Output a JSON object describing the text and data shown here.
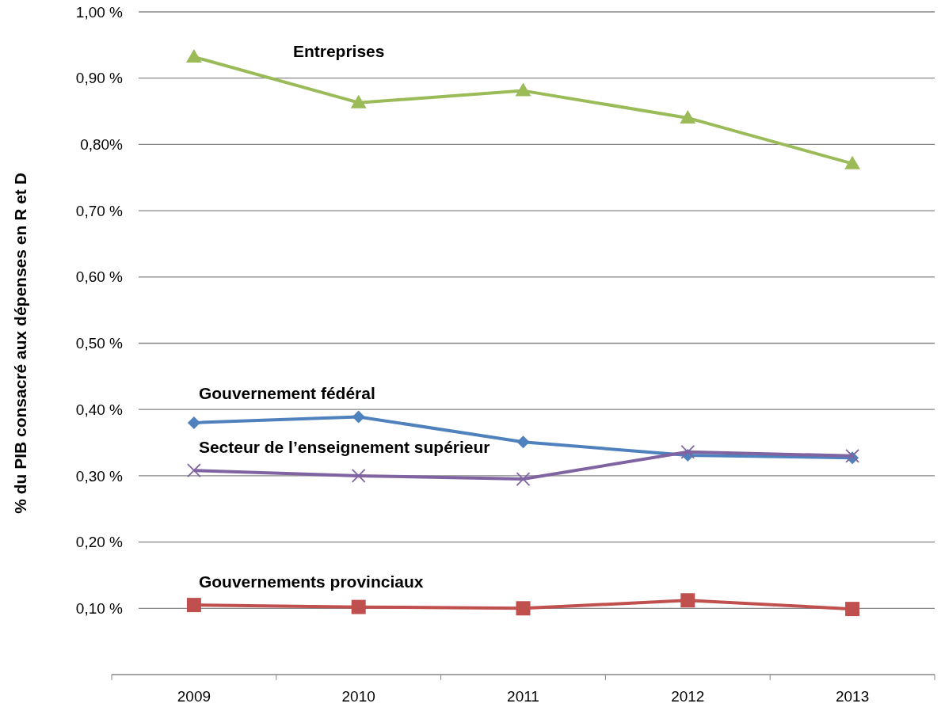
{
  "chart_data": {
    "type": "line",
    "ylabel": "% du PIB consacré aux dépenses en R et D",
    "categories": [
      "2009",
      "2010",
      "2011",
      "2012",
      "2013"
    ],
    "series": [
      {
        "name": "Entreprises",
        "color": "#9bbb59",
        "marker": "triangle",
        "values": [
          0.932,
          0.863,
          0.881,
          0.84,
          0.771
        ]
      },
      {
        "name": "Gouvernement fédéral",
        "color": "#4f81bd",
        "marker": "diamond",
        "values": [
          0.38,
          0.389,
          0.351,
          0.331,
          0.327
        ]
      },
      {
        "name": "Secteur de l’enseignement supérieur",
        "color": "#8064a2",
        "marker": "cross",
        "values": [
          0.308,
          0.3,
          0.295,
          0.336,
          0.33
        ]
      },
      {
        "name": "Gouvernements provinciaux",
        "color": "#c0504d",
        "marker": "square",
        "values": [
          0.105,
          0.102,
          0.1,
          0.112,
          0.099
        ]
      }
    ],
    "ylim": [
      0,
      1.0
    ],
    "yticks": [
      {
        "value": 0.1,
        "label": "0,10 %"
      },
      {
        "value": 0.2,
        "label": "0,20 %"
      },
      {
        "value": 0.3,
        "label": "0,30 %"
      },
      {
        "value": 0.4,
        "label": "0,40 %"
      },
      {
        "value": 0.5,
        "label": "0,50 %"
      },
      {
        "value": 0.6,
        "label": "0,60 %"
      },
      {
        "value": 0.7,
        "label": "0,70 %"
      },
      {
        "value": 0.8,
        "label": "0,80%"
      },
      {
        "value": 0.9,
        "label": "0,90 %"
      },
      {
        "value": 1.0,
        "label": "1,00 %"
      }
    ],
    "grid": "y"
  }
}
